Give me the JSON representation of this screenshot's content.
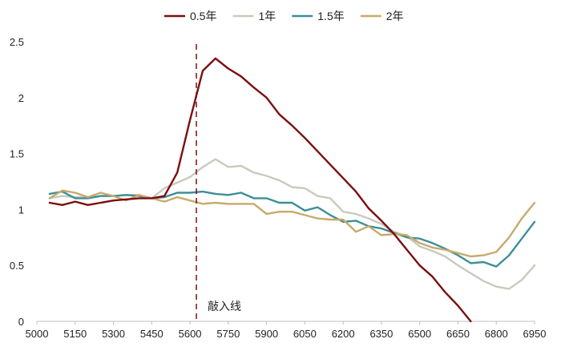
{
  "chart_data": {
    "type": "line",
    "x_ticks": [
      5000,
      5150,
      5300,
      5450,
      5600,
      5750,
      5900,
      6050,
      6200,
      6350,
      6500,
      6650,
      6800,
      6950
    ],
    "y_ticks": [
      0,
      0.5,
      1,
      1.5,
      2,
      2.5
    ],
    "y_tick_labels": [
      "0",
      "0.5",
      "1",
      "1.5",
      "2",
      "2.5"
    ],
    "xlim": [
      5000,
      6950
    ],
    "ylim": [
      0,
      2.5
    ],
    "legend_position": "top-center",
    "grid": false,
    "annotation": {
      "label": "敲入线",
      "x": 5625
    },
    "series": [
      {
        "name": "0.5年",
        "color": "#7b0f0f",
        "x": [
          5050,
          5100,
          5150,
          5200,
          5250,
          5300,
          5350,
          5400,
          5450,
          5500,
          5550,
          5600,
          5650,
          5700,
          5750,
          5800,
          5850,
          5900,
          5950,
          6000,
          6050,
          6100,
          6150,
          6200,
          6250,
          6300,
          6350,
          6400,
          6450,
          6500,
          6550,
          6600,
          6650,
          6700
        ],
        "y": [
          1.06,
          1.04,
          1.07,
          1.04,
          1.06,
          1.08,
          1.09,
          1.1,
          1.1,
          1.12,
          1.33,
          1.8,
          2.24,
          2.35,
          2.26,
          2.19,
          2.09,
          2.0,
          1.85,
          1.75,
          1.64,
          1.52,
          1.4,
          1.28,
          1.16,
          1.01,
          0.9,
          0.78,
          0.64,
          0.5,
          0.4,
          0.26,
          0.14,
          0.0
        ]
      },
      {
        "name": "1年",
        "color": "#c9c9bd",
        "x": [
          5050,
          5100,
          5150,
          5200,
          5250,
          5300,
          5350,
          5400,
          5450,
          5500,
          5550,
          5600,
          5650,
          5700,
          5750,
          5800,
          5850,
          5900,
          5950,
          6000,
          6050,
          6100,
          6150,
          6200,
          6250,
          6300,
          6350,
          6400,
          6450,
          6500,
          6550,
          6600,
          6650,
          6700,
          6750,
          6800,
          6850,
          6900,
          6950
        ],
        "y": [
          1.1,
          1.12,
          1.11,
          1.11,
          1.12,
          1.12,
          1.13,
          1.13,
          1.1,
          1.19,
          1.24,
          1.29,
          1.38,
          1.45,
          1.38,
          1.39,
          1.33,
          1.3,
          1.26,
          1.2,
          1.19,
          1.12,
          1.1,
          0.98,
          0.96,
          0.92,
          0.87,
          0.8,
          0.76,
          0.67,
          0.63,
          0.58,
          0.5,
          0.43,
          0.36,
          0.31,
          0.29,
          0.37,
          0.5
        ]
      },
      {
        "name": "1.5年",
        "color": "#3e8e97",
        "x": [
          5050,
          5100,
          5150,
          5200,
          5250,
          5300,
          5350,
          5400,
          5450,
          5500,
          5550,
          5600,
          5650,
          5700,
          5750,
          5800,
          5850,
          5900,
          5950,
          6000,
          6050,
          6100,
          6150,
          6200,
          6250,
          6300,
          6350,
          6400,
          6450,
          6500,
          6550,
          6600,
          6650,
          6700,
          6750,
          6800,
          6850,
          6900,
          6950
        ],
        "y": [
          1.14,
          1.16,
          1.1,
          1.1,
          1.12,
          1.12,
          1.13,
          1.12,
          1.1,
          1.11,
          1.15,
          1.15,
          1.16,
          1.14,
          1.13,
          1.15,
          1.1,
          1.1,
          1.06,
          1.06,
          0.99,
          1.02,
          0.95,
          0.89,
          0.9,
          0.85,
          0.83,
          0.79,
          0.75,
          0.74,
          0.7,
          0.65,
          0.59,
          0.52,
          0.53,
          0.49,
          0.59,
          0.74,
          0.89
        ]
      },
      {
        "name": "2年",
        "color": "#c9a96b",
        "x": [
          5050,
          5100,
          5150,
          5200,
          5250,
          5300,
          5350,
          5400,
          5450,
          5500,
          5550,
          5600,
          5650,
          5700,
          5750,
          5800,
          5850,
          5900,
          5950,
          6000,
          6050,
          6100,
          6150,
          6200,
          6250,
          6300,
          6350,
          6400,
          6450,
          6500,
          6550,
          6600,
          6650,
          6700,
          6750,
          6800,
          6850,
          6900,
          6950
        ],
        "y": [
          1.1,
          1.17,
          1.15,
          1.11,
          1.15,
          1.12,
          1.08,
          1.13,
          1.1,
          1.07,
          1.11,
          1.08,
          1.05,
          1.06,
          1.05,
          1.05,
          1.05,
          0.96,
          0.98,
          0.98,
          0.95,
          0.92,
          0.91,
          0.91,
          0.8,
          0.85,
          0.77,
          0.78,
          0.77,
          0.7,
          0.66,
          0.64,
          0.61,
          0.58,
          0.59,
          0.62,
          0.75,
          0.92,
          1.06
        ]
      }
    ]
  }
}
